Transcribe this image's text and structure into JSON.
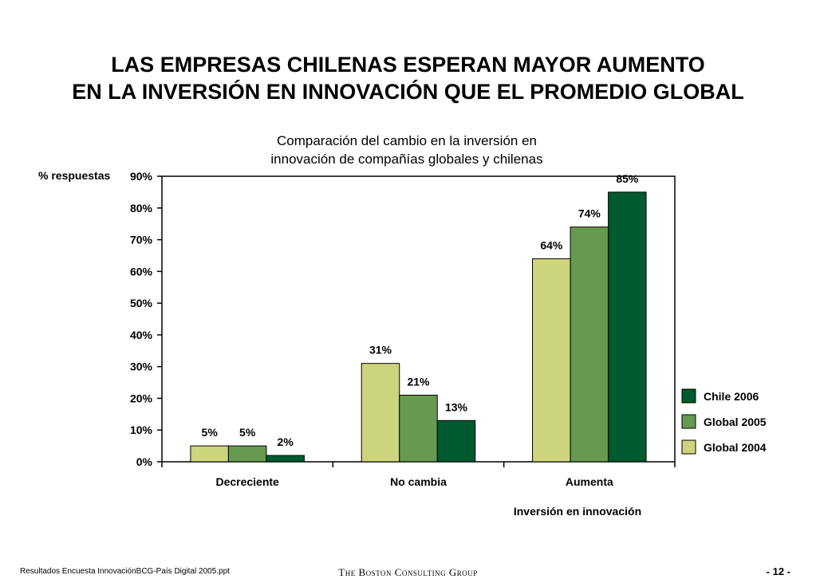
{
  "page": {
    "title_line1": "LAS EMPRESAS CHILENAS ESPERAN MAYOR AUMENTO",
    "title_line2": "EN LA INVERSIÓN EN INNOVACIÓN QUE EL PROMEDIO GLOBAL",
    "footer_left": "Resultados Encuesta InnovaciónBCG-País Digital 2005.ppt",
    "footer_center": "The Boston Consulting Group",
    "footer_right": "- 12 -"
  },
  "chart_data": {
    "type": "bar",
    "title_line1": "Comparación del cambio en la inversión en",
    "title_line2": "innovación de compañías globales y chilenas",
    "ylabel": "% respuestas",
    "xlabel": "Inversión en innovación",
    "categories": [
      "Decreciente",
      "No cambia",
      "Aumenta"
    ],
    "series": [
      {
        "name": "Global 2004",
        "color": "#ccd57c",
        "values": [
          5,
          31,
          64
        ],
        "labels": [
          "5%",
          "31%",
          "64%"
        ]
      },
      {
        "name": "Global 2005",
        "color": "#669a50",
        "values": [
          5,
          21,
          74
        ],
        "labels": [
          "5%",
          "21%",
          "74%"
        ]
      },
      {
        "name": "Chile 2006",
        "color": "#005a30",
        "values": [
          2,
          13,
          85
        ],
        "labels": [
          "2%",
          "13%",
          "85%"
        ]
      }
    ],
    "ylim": [
      0,
      90
    ],
    "yticks": [
      0,
      10,
      20,
      30,
      40,
      50,
      60,
      70,
      80,
      90
    ],
    "ytick_labels": [
      "0%",
      "10%",
      "20%",
      "30%",
      "40%",
      "50%",
      "60%",
      "70%",
      "80%",
      "90%"
    ],
    "legend_order": [
      "Chile 2006",
      "Global 2005",
      "Global 2004"
    ],
    "legend_position": "right",
    "grid": false
  }
}
